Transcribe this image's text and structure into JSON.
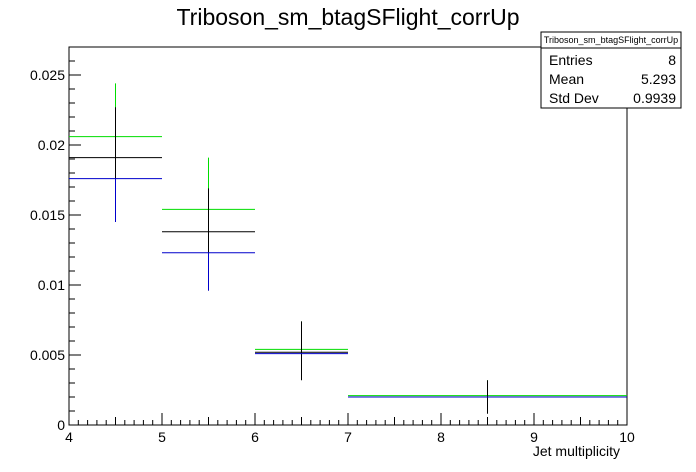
{
  "chart_data": {
    "type": "scatter",
    "title": "Triboson_sm_btagSFlight_corrUp",
    "xlabel": "Jet multiplicity",
    "ylabel": "",
    "xlim": [
      4,
      10
    ],
    "ylim": [
      0,
      0.027
    ],
    "x_ticks": [
      "4",
      "5",
      "6",
      "7",
      "8",
      "9",
      "10"
    ],
    "y_ticks": [
      "0",
      "0.005",
      "0.01",
      "0.015",
      "0.02",
      "0.025"
    ],
    "grid": false,
    "stats_box": {
      "title": "Triboson_sm_btagSFlight_corrUp",
      "rows": [
        {
          "label": "Entries",
          "value": "8"
        },
        {
          "label": "Mean",
          "value": "5.293"
        },
        {
          "label": "Std Dev",
          "value": "0.9939"
        }
      ]
    },
    "series": [
      {
        "color": "#00dd00",
        "bins": [
          {
            "xlow": 4,
            "xhigh": 5,
            "y": 0.0206,
            "err_low": 0.0032,
            "err_high": 0.0038
          },
          {
            "xlow": 5,
            "xhigh": 6,
            "y": 0.0154,
            "err_low": 0.0028,
            "err_high": 0.0037
          },
          {
            "xlow": 6,
            "xhigh": 7,
            "y": 0.0054,
            "err_low": 0.0,
            "err_high": 0.002
          },
          {
            "xlow": 7,
            "xhigh": 10,
            "y": 0.0021,
            "err_low": 0.0,
            "err_high": 0.0011
          }
        ]
      },
      {
        "color": "#000000",
        "bins": [
          {
            "xlow": 4,
            "xhigh": 5,
            "y": 0.0191,
            "err_low": 0.0046,
            "err_high": 0.0036
          },
          {
            "xlow": 5,
            "xhigh": 6,
            "y": 0.0138,
            "err_low": 0.0042,
            "err_high": 0.0031
          },
          {
            "xlow": 6,
            "xhigh": 7,
            "y": 0.0052,
            "err_low": 0.002,
            "err_high": 0.0022
          },
          {
            "xlow": 7,
            "xhigh": 10,
            "y": 0.002,
            "err_low": 0.0012,
            "err_high": 0.0012
          }
        ]
      },
      {
        "color": "#0000cc",
        "bins": [
          {
            "xlow": 4,
            "xhigh": 5,
            "y": 0.0176,
            "err_low": 0.0031,
            "err_high": 0.0
          },
          {
            "xlow": 5,
            "xhigh": 6,
            "y": 0.0123,
            "err_low": 0.0027,
            "err_high": 0.0
          },
          {
            "xlow": 6,
            "xhigh": 7,
            "y": 0.0051,
            "err_low": 0.0,
            "err_high": 0.0
          },
          {
            "xlow": 7,
            "xhigh": 10,
            "y": 0.002,
            "err_low": 0.0,
            "err_high": 0.0
          }
        ]
      }
    ]
  }
}
